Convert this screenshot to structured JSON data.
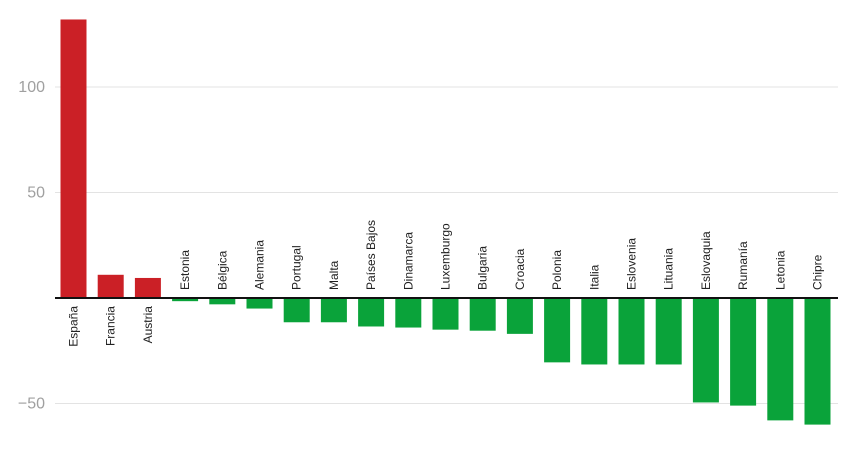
{
  "chart_data": {
    "type": "bar",
    "title": "",
    "xlabel": "",
    "ylabel": "",
    "ylim": [
      -60,
      133
    ],
    "yticks": [
      100,
      50,
      -50
    ],
    "grid": true,
    "legend": "none",
    "categories": [
      "España",
      "Francia",
      "Austria",
      "Estonia",
      "Bélgica",
      "Alemania",
      "Portugal",
      "Malta",
      "Países Bajos",
      "Dinamarca",
      "Luxemburgo",
      "Bulgaria",
      "Croacia",
      "Polonia",
      "Italia",
      "Eslovenia",
      "Lituania",
      "Eslovaquia",
      "Rumanía",
      "Letonia",
      "Chipre"
    ],
    "values": [
      132,
      11,
      9.5,
      -1.5,
      -3,
      -5,
      -11.5,
      -11.5,
      -13.5,
      -14,
      -15,
      -15.5,
      -17,
      -30.5,
      -31.5,
      -31.5,
      -31.5,
      -49.5,
      -51,
      -58,
      -60
    ],
    "colors": {
      "positive": "#cb2026",
      "negative": "#0aa33a"
    }
  }
}
